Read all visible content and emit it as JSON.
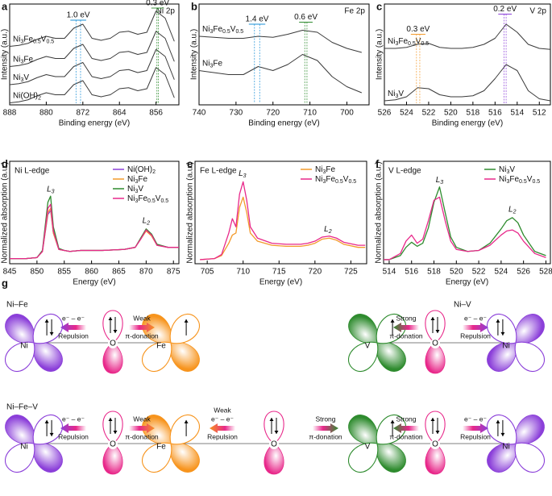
{
  "chart_data": [
    {
      "type": "line",
      "panel": "a",
      "title": "Ni 2p",
      "xlabel": "Binding energy (eV)",
      "ylabel": "Intensity (a.u.)",
      "x": [
        888,
        886,
        884,
        882,
        880,
        878,
        876,
        874,
        872,
        870,
        868,
        866,
        864,
        862,
        860,
        858,
        856,
        854,
        852
      ],
      "xlim": [
        888,
        851
      ],
      "xticks": [
        888,
        880,
        872,
        864,
        856
      ],
      "ylim": [
        0,
        100
      ],
      "line_color": "#3a3a3a",
      "series": [
        {
          "name": "Ni3Fe0.5V0.5",
          "color": "#e8288a",
          "values": [
            58,
            59,
            61,
            65,
            68,
            66,
            66,
            76,
            80,
            66,
            64,
            66,
            72,
            73,
            70,
            72,
            93,
            86,
            63
          ]
        },
        {
          "name": "Ni3Fe",
          "color": "#f39a2b",
          "values": [
            38,
            39,
            41,
            45,
            48,
            46,
            46,
            56,
            60,
            46,
            44,
            46,
            52,
            53,
            50,
            52,
            73,
            66,
            43
          ]
        },
        {
          "name": "Ni3V",
          "color": "#2e8b2e",
          "values": [
            20,
            21,
            23,
            27,
            30,
            28,
            28,
            38,
            42,
            28,
            26,
            28,
            34,
            35,
            32,
            34,
            55,
            48,
            25
          ]
        },
        {
          "name": "Ni(OH)2",
          "color": "#8b3fd9",
          "values": [
            2,
            3,
            5,
            9,
            12,
            10,
            10,
            20,
            24,
            10,
            8,
            10,
            16,
            17,
            14,
            16,
            37,
            30,
            7
          ]
        }
      ],
      "annotations": [
        {
          "text": "1.0 eV",
          "color": "#1a8fd6",
          "x": [
            873.5,
            872.5
          ],
          "y": 84
        },
        {
          "text": "0.3 eV",
          "color": "#2e8b2e",
          "x": [
            855.8,
            855.5
          ],
          "y": 96
        }
      ]
    },
    {
      "type": "line",
      "panel": "b",
      "title": "Fe 2p",
      "xlabel": "Binding energy (eV)",
      "ylabel": "Intensity (a.u.)",
      "x": [
        740,
        736,
        732,
        728,
        724,
        720,
        716,
        712,
        708,
        704,
        700,
        696
      ],
      "xlim": [
        740,
        694
      ],
      "xticks": [
        740,
        730,
        720,
        710,
        700
      ],
      "ylim": [
        0,
        100
      ],
      "line_color": "#3a3a3a",
      "series": [
        {
          "name": "Ni3Fe0.5V0.5",
          "color": "#e8288a",
          "values": [
            68,
            67,
            66,
            66,
            68,
            67,
            70,
            74,
            72,
            62,
            56,
            52
          ]
        },
        {
          "name": "Ni3Fe",
          "color": "#f39a2b",
          "values": [
            34,
            32,
            30,
            30,
            38,
            34,
            40,
            50,
            44,
            28,
            18,
            12
          ]
        }
      ],
      "annotations": [
        {
          "text": "1.4 eV",
          "color": "#1a8fd6",
          "x": [
            725,
            723.6
          ],
          "y": 80
        },
        {
          "text": "0.6 eV",
          "color": "#2e8b2e",
          "x": [
            711.4,
            710.8
          ],
          "y": 82
        }
      ]
    },
    {
      "type": "line",
      "panel": "c",
      "title": "V 2p",
      "xlabel": "Binding energy (eV)",
      "ylabel": "Intensity (a.u.)",
      "x": [
        526,
        525,
        524,
        523,
        522,
        521,
        520,
        519,
        518,
        517,
        516,
        515,
        514,
        513,
        512,
        511
      ],
      "xlim": [
        526,
        511
      ],
      "xticks": [
        526,
        524,
        522,
        520,
        518,
        516,
        514,
        512
      ],
      "ylim": [
        0,
        100
      ],
      "line_color": "#3a3a3a",
      "series": [
        {
          "name": "Ni3Fe0.5V0.5",
          "color": "#e8288a",
          "values": [
            56,
            56,
            57,
            60,
            61,
            57,
            56,
            56,
            57,
            60,
            66,
            80,
            72,
            60,
            56,
            55
          ]
        },
        {
          "name": "Ni3V",
          "color": "#2e8b2e",
          "values": [
            4,
            5,
            8,
            17,
            16,
            10,
            8,
            8,
            9,
            14,
            26,
            40,
            34,
            14,
            6,
            4
          ]
        }
      ],
      "annotations": [
        {
          "text": "0.3 eV",
          "color": "#f39a2b",
          "x": [
            523.1,
            522.8
          ],
          "y": 70
        },
        {
          "text": "0.2 eV",
          "color": "#8b3fd9",
          "x": [
            515.2,
            515.0
          ],
          "y": 90
        }
      ]
    },
    {
      "type": "line",
      "panel": "d",
      "title": "Ni L-edge",
      "xlabel": "Energy (eV)",
      "ylabel": "Normalized absorption (a.u.)",
      "x": [
        845,
        848,
        850,
        851,
        852,
        852.5,
        853,
        854,
        855,
        856,
        858,
        862,
        866,
        868,
        869,
        870,
        871,
        872,
        874,
        876
      ],
      "xlim": [
        845,
        876
      ],
      "xticks": [
        845,
        850,
        855,
        860,
        865,
        870,
        875
      ],
      "ylim": [
        0,
        100
      ],
      "legend": "upper right",
      "series": [
        {
          "name": "Ni(OH)2",
          "color": "#8b3fd9",
          "values": [
            5,
            5,
            6,
            12,
            48,
            52,
            30,
            14,
            13,
            12,
            13,
            13,
            14,
            16,
            24,
            33,
            28,
            18,
            16,
            16
          ]
        },
        {
          "name": "Ni3Fe",
          "color": "#f39a2b",
          "values": [
            5,
            5,
            6,
            12,
            50,
            54,
            30,
            14,
            13,
            12,
            13,
            13,
            14,
            16,
            24,
            32,
            27,
            18,
            16,
            16
          ]
        },
        {
          "name": "Ni3V",
          "color": "#2e8b2e",
          "values": [
            5,
            5,
            6,
            13,
            60,
            66,
            36,
            15,
            13,
            12,
            13,
            13,
            14,
            16,
            25,
            34,
            29,
            19,
            16,
            16
          ]
        },
        {
          "name": "Ni3Fe0.5V0.5",
          "color": "#e8288a",
          "values": [
            5,
            5,
            6,
            12,
            54,
            58,
            32,
            14,
            13,
            12,
            13,
            13,
            14,
            16,
            24,
            33,
            28,
            18,
            16,
            16
          ]
        }
      ],
      "annotations": [
        {
          "text": "L3",
          "color": "#000000",
          "x": 852.5,
          "y": 73
        },
        {
          "text": "L2",
          "color": "#000000",
          "x": 870,
          "y": 42
        }
      ]
    },
    {
      "type": "line",
      "panel": "e",
      "title": "Fe L-edge",
      "xlabel": "Energy (eV)",
      "ylabel": "Normalized absorption (a.u.)",
      "x": [
        704,
        706,
        707,
        708,
        708.5,
        709,
        709.5,
        710,
        710.5,
        711,
        712,
        714,
        716,
        718,
        719,
        720,
        721,
        722,
        723,
        724,
        726,
        727
      ],
      "xlim": [
        703.3,
        727.2
      ],
      "xticks": [
        705,
        710,
        715,
        720,
        725
      ],
      "ylim": [
        0,
        100
      ],
      "legend": "upper right",
      "series": [
        {
          "name": "Ni3Fe",
          "color": "#f39a2b",
          "values": [
            4,
            5,
            8,
            20,
            28,
            30,
            55,
            65,
            50,
            30,
            22,
            18,
            17,
            17,
            18,
            20,
            24,
            25,
            23,
            19,
            16,
            16
          ]
        },
        {
          "name": "Ni3Fe0.5V0.5",
          "color": "#e8288a",
          "values": [
            4,
            5,
            9,
            30,
            44,
            36,
            68,
            80,
            62,
            36,
            25,
            20,
            19,
            19,
            20,
            22,
            26,
            27,
            25,
            21,
            18,
            18
          ]
        }
      ],
      "annotations": [
        {
          "text": "L3",
          "color": "#000000",
          "x": 709.9,
          "y": 88
        },
        {
          "text": "L2",
          "color": "#000000",
          "x": 721.8,
          "y": 34
        }
      ]
    },
    {
      "type": "line",
      "panel": "f",
      "title": "V L-edge",
      "xlabel": "Energy (eV)",
      "ylabel": "Normalized absorption (a.u.)",
      "x": [
        513.5,
        514,
        515,
        515.5,
        516,
        516.5,
        517,
        517.5,
        518,
        518.5,
        519,
        519.5,
        520,
        521,
        522,
        523,
        524,
        524.5,
        525,
        525.5,
        526,
        527,
        528
      ],
      "xlim": [
        513.5,
        528.4
      ],
      "xticks": [
        514,
        516,
        518,
        520,
        522,
        524,
        526,
        528
      ],
      "ylim": [
        0,
        100
      ],
      "legend": "upper right",
      "series": [
        {
          "name": "Ni3V",
          "color": "#2e8b2e",
          "values": [
            4,
            4,
            8,
            16,
            21,
            17,
            20,
            35,
            60,
            75,
            50,
            26,
            16,
            12,
            13,
            20,
            34,
            42,
            45,
            40,
            28,
            12,
            8
          ]
        },
        {
          "name": "Ni3Fe0.5V0.5",
          "color": "#e8288a",
          "values": [
            4,
            4,
            10,
            22,
            28,
            20,
            24,
            42,
            62,
            65,
            42,
            22,
            14,
            12,
            13,
            18,
            28,
            32,
            33,
            30,
            22,
            10,
            6
          ]
        }
      ],
      "annotations": [
        {
          "text": "L3",
          "color": "#000000",
          "x": 518.5,
          "y": 82
        },
        {
          "text": "L2",
          "color": "#000000",
          "x": 525,
          "y": 53
        }
      ]
    }
  ],
  "diagram": {
    "label": "g",
    "atom_colors": {
      "Ni": "#8b3fd9",
      "Fe": "#f7941d",
      "V": "#2e8b2e",
      "O": "#e8288a"
    },
    "groups": [
      {
        "title": "Ni–Fe",
        "atoms": [
          "Ni",
          "O",
          "Fe"
        ],
        "links": [
          [
            "e⁻ – e⁻",
            "Repulsion"
          ],
          [
            "Weak",
            "π-donation"
          ]
        ]
      },
      {
        "title": "Ni–V",
        "atoms": [
          "V",
          "O",
          "Ni"
        ],
        "links": [
          [
            "Strong",
            "π-donation"
          ],
          [
            "e⁻ – e⁻",
            "Repulsion"
          ]
        ]
      },
      {
        "title": "Ni–Fe–V",
        "atoms": [
          "Ni",
          "O",
          "Fe",
          "O",
          "V",
          "O",
          "Ni"
        ],
        "links": [
          [
            "e⁻ – e⁻",
            "Repulsion"
          ],
          [
            "Weak",
            "π-donation"
          ],
          [
            "Weak",
            "e⁻ – e⁻",
            "Repulsion"
          ],
          [
            "Strong",
            "π-donation"
          ],
          [
            "Strong",
            "π-donation"
          ],
          [
            "e⁻ – e⁻",
            "Repulsion"
          ]
        ]
      }
    ]
  }
}
